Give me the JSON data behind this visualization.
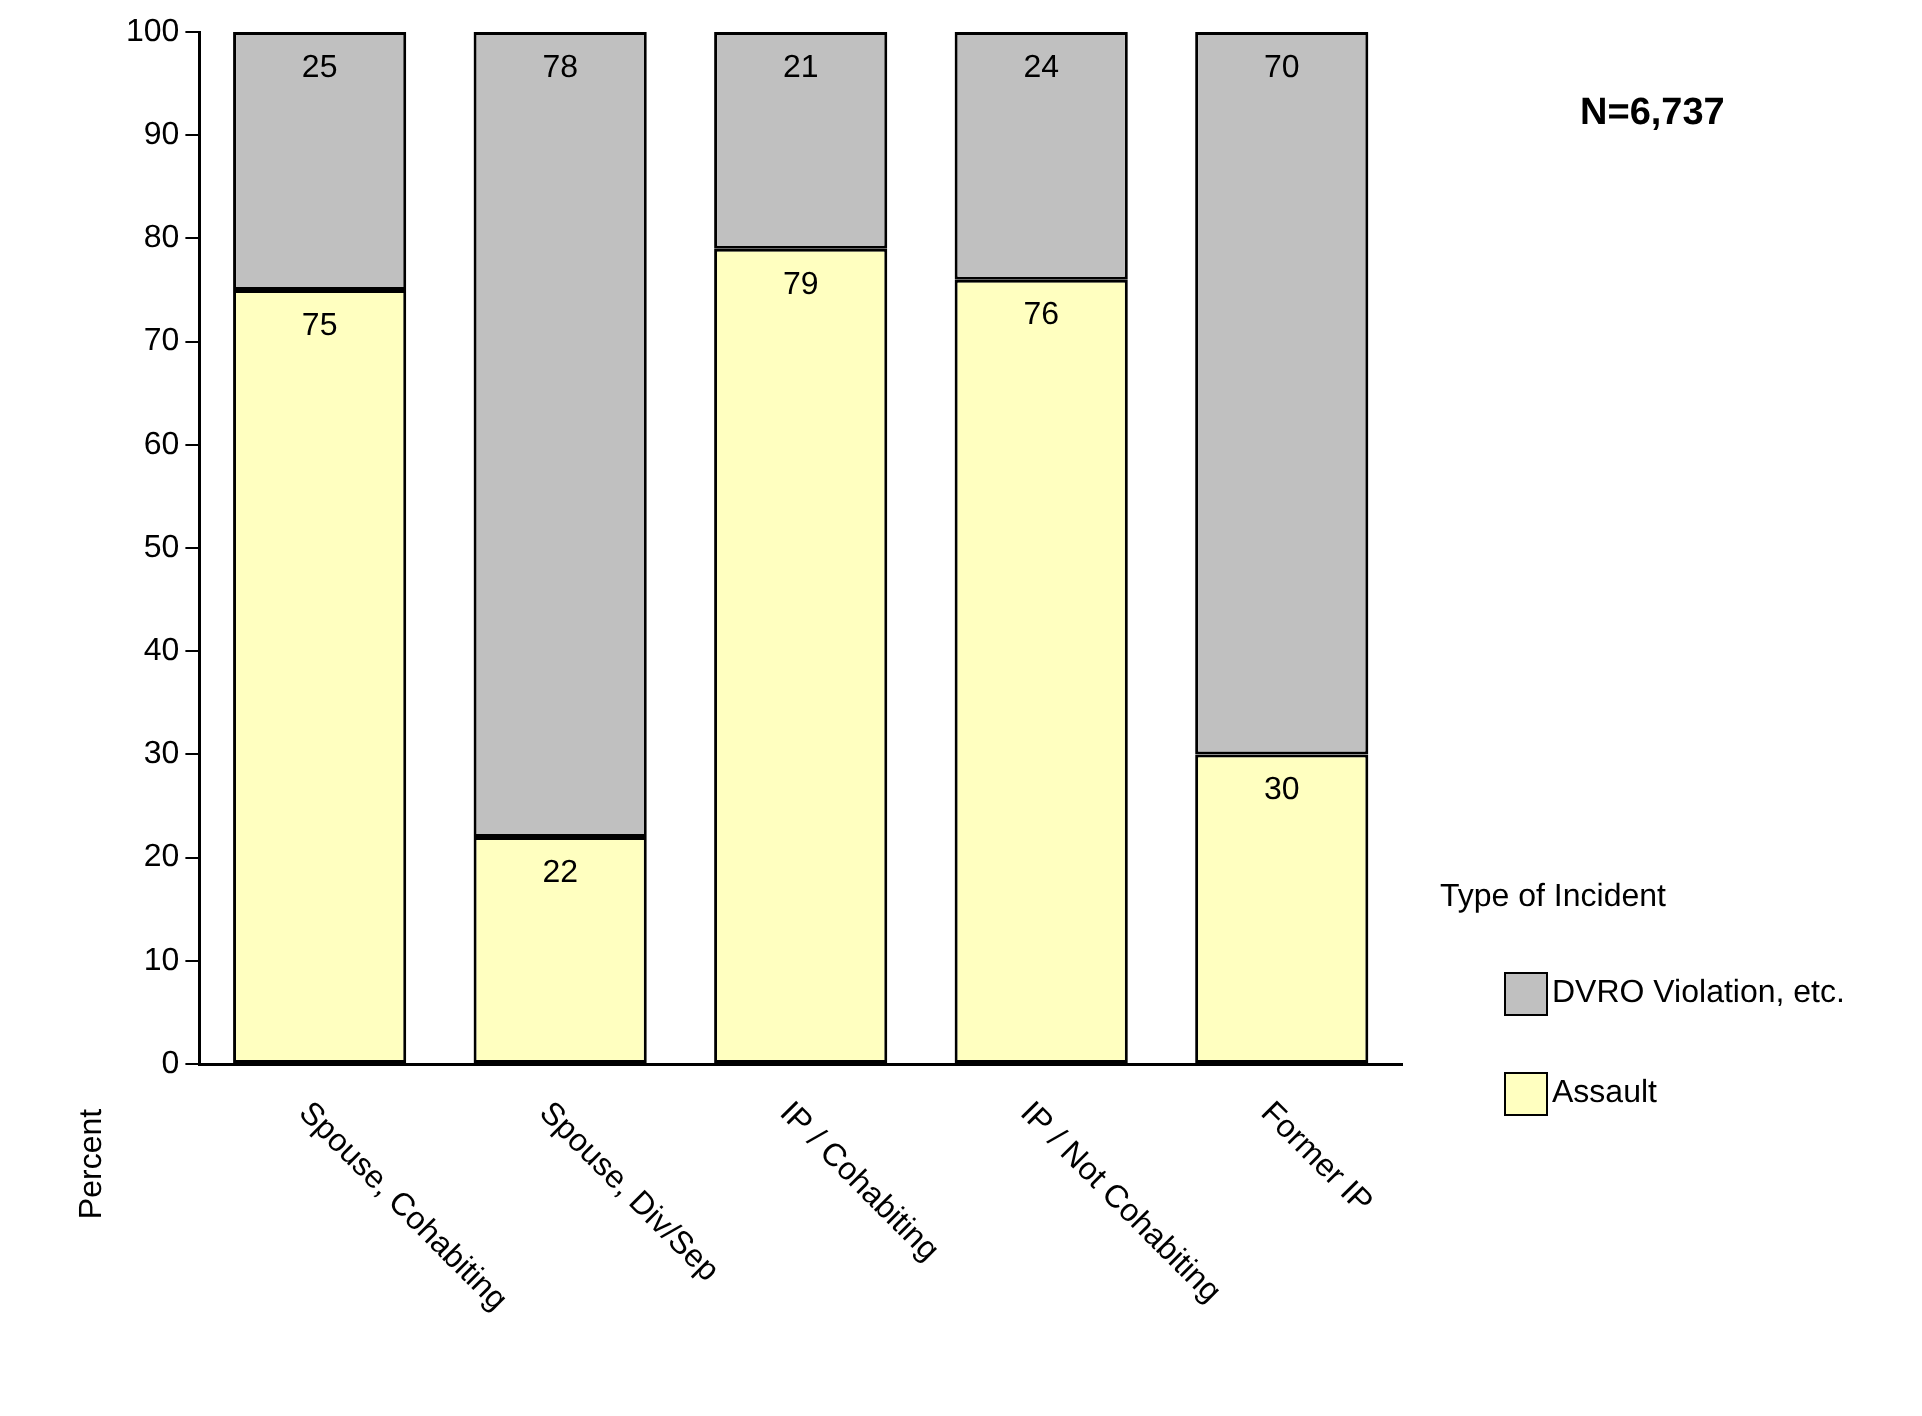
{
  "chart_data": {
    "type": "bar",
    "stacked": true,
    "ylabel": "Percent",
    "legend_title": "Type of Incident",
    "legend": "right",
    "grid": false,
    "data_labels": true,
    "annotations": [
      "N=6,737"
    ],
    "categories": [
      "Spouse, Cohabiting",
      "Spouse, Div/Sep",
      "IP / Cohabiting",
      "IP / Not Cohabiting",
      "Former IP"
    ],
    "ylim": [
      0,
      100
    ],
    "yticks": [
      0,
      10,
      20,
      30,
      40,
      50,
      60,
      70,
      80,
      90,
      100
    ],
    "series": [
      {
        "name": "Assault",
        "color": "#ffffc0",
        "values": [
          75,
          22,
          79,
          76,
          30
        ]
      },
      {
        "name": "DVRO Violation, etc.",
        "color": "#c0c0c0",
        "values": [
          25,
          78,
          21,
          24,
          70
        ]
      }
    ]
  }
}
